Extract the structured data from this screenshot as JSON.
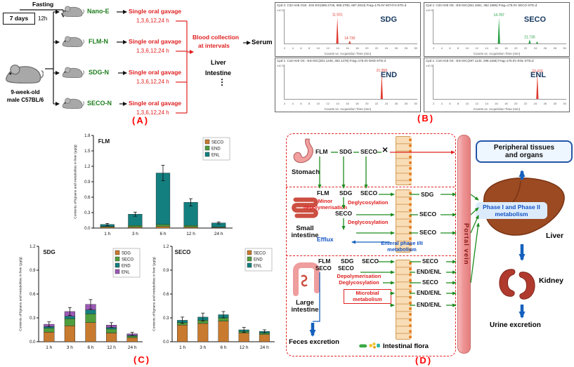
{
  "panels": {
    "a": "(A)",
    "b": "(B)",
    "c": "(C)",
    "d": "(D)"
  },
  "panel_a": {
    "fasting": "Fasting",
    "seven_days": "7 days",
    "twelve_h": "12h",
    "mouse_line1": "9-week-old",
    "mouse_line2": "male C57BL/6",
    "groups": [
      {
        "name": "Nano-E",
        "gavage": "Single oral gavage",
        "times": "1,3,6,12,24 h"
      },
      {
        "name": "FLM-N",
        "gavage": "Single oral gavage",
        "times": "1,3,6,12,24 h"
      },
      {
        "name": "SDG-N",
        "gavage": "Single oral gavage",
        "times": "1,3,6,12,24 h"
      },
      {
        "name": "SECO-N",
        "gavage": "Single oral gavage",
        "times": "1,3,6,12,24 h"
      }
    ],
    "blood_line1": "Blood collection",
    "blood_line2": "at intervals",
    "serum": "Serum",
    "liver": "Liver",
    "intestine": "Intestine",
    "dots": "⋮"
  },
  "panel_b": {
    "x_axis_caption": "Counts vs. Acquisition Time (min)",
    "y_unit": "x10 5",
    "panels": [
      {
        "name": "SDG",
        "header": "Cpd 2: C32 H46 O16: -ESI EIC(685.2746, 686.2780, 687.2813) Frag=175.0V 607474-STD.d",
        "color": "#e03a2f",
        "x_max": 30,
        "x_ticks": [
          2,
          4,
          6,
          8,
          10,
          12,
          14,
          16,
          18,
          20,
          22,
          24,
          26,
          28,
          30
        ],
        "peaks": [
          {
            "rt": 11.93,
            "h": 0.92,
            "label": "11.931"
          },
          {
            "rt": 14.73,
            "h": 0.1,
            "label": "14.730"
          }
        ]
      },
      {
        "name": "SECO",
        "header": "Cpd 1: C20 H26 O6: -ESI EIC(361.1651, 362.1685) Frag=175.0V SECO-STD.d",
        "color": "#1e9e3e",
        "x_max": 30,
        "x_ticks": [
          2,
          4,
          6,
          8,
          10,
          12,
          14,
          16,
          18,
          20,
          22,
          24,
          26,
          28,
          30
        ],
        "peaks": [
          {
            "rt": 14.79,
            "h": 0.9,
            "label": "14.787"
          },
          {
            "rt": 21.73,
            "h": 0.14,
            "label": "21.730"
          },
          {
            "rt": 23.4,
            "h": 0.07,
            "label": ""
          }
        ]
      },
      {
        "name": "END",
        "header": "Cpd 1: C18 H20 O4: -ESI EIC(301.1445, 302.1478) Frag=175.0V END-STD.d",
        "color": "#e03a2f",
        "x_max": 30,
        "x_ticks": [
          2,
          4,
          6,
          8,
          10,
          12,
          14,
          16,
          18,
          20,
          22,
          24,
          26,
          28,
          30
        ],
        "peaks": [
          {
            "rt": 21.96,
            "h": 0.9,
            "label": "21.958"
          }
        ]
      },
      {
        "name": "ENL",
        "header": "Cpd 1: C18 H18 O4: -ESI EIC(297.1132, 298.1166) Frag=175.0V ENL-STD.d",
        "color": "#e03a2f",
        "x_max": 30,
        "x_ticks": [
          2,
          4,
          6,
          8,
          10,
          12,
          14,
          16,
          18,
          20,
          22,
          24,
          26,
          28,
          30
        ],
        "peaks": [
          {
            "rt": 23.47,
            "h": 0.88,
            "label": "23.470"
          }
        ]
      }
    ]
  },
  "chart_data": [
    {
      "type": "bar",
      "title": "FLM",
      "ylabel": "Contents of lignans and metabolites in liver (μg/g)",
      "ylim": [
        0,
        1.8
      ],
      "yticks": [
        0,
        0.3,
        0.6,
        0.9,
        1.2,
        1.5,
        1.8
      ],
      "categories": [
        "1 h",
        "3 h",
        "6 h",
        "12 h",
        "24 h"
      ],
      "series": [
        {
          "name": "SECO",
          "color": "#c87a2e",
          "values": [
            0.02,
            0.02,
            0.03,
            0.02,
            0.01
          ]
        },
        {
          "name": "END",
          "color": "#4f9d3c",
          "values": [
            0.01,
            0.03,
            0.04,
            0.03,
            0.01
          ]
        },
        {
          "name": "ENL",
          "color": "#137f7f",
          "values": [
            0.04,
            0.22,
            1.0,
            0.45,
            0.08
          ]
        }
      ],
      "errors": [
        0.02,
        0.04,
        0.15,
        0.07,
        0.02
      ],
      "legend_pos": "top-right",
      "grid": false
    },
    {
      "type": "bar",
      "title": "SDG",
      "ylabel": "Contents of lignans and metabolites in liver (μg/g)",
      "ylim": [
        0,
        1.2
      ],
      "yticks": [
        0,
        0.3,
        0.6,
        0.9,
        1.2
      ],
      "categories": [
        "1 h",
        "3 h",
        "6 h",
        "12 h",
        "24 h"
      ],
      "series": [
        {
          "name": "SDG",
          "color": "#c87a2e",
          "values": [
            0.12,
            0.2,
            0.24,
            0.11,
            0.05
          ]
        },
        {
          "name": "SECO",
          "color": "#4f9d3c",
          "values": [
            0.05,
            0.09,
            0.11,
            0.05,
            0.02
          ]
        },
        {
          "name": "END",
          "color": "#137f7f",
          "values": [
            0.02,
            0.03,
            0.05,
            0.02,
            0.01
          ]
        },
        {
          "name": "ENL",
          "color": "#9b59b6",
          "values": [
            0.03,
            0.06,
            0.07,
            0.03,
            0.02
          ]
        }
      ],
      "errors": [
        0.03,
        0.05,
        0.06,
        0.03,
        0.02
      ],
      "legend_pos": "top-right",
      "grid": false
    },
    {
      "type": "bar",
      "title": "SECO",
      "ylabel": "Contents of lignans and metabolites in liver (μg/g)",
      "ylim": [
        0,
        1.2
      ],
      "yticks": [
        0,
        0.3,
        0.6,
        0.9,
        1.2
      ],
      "categories": [
        "1 h",
        "3 h",
        "6 h",
        "12 h",
        "24 h"
      ],
      "series": [
        {
          "name": "SECO",
          "color": "#c87a2e",
          "values": [
            0.21,
            0.23,
            0.26,
            0.11,
            0.09
          ]
        },
        {
          "name": "END",
          "color": "#4f9d3c",
          "values": [
            0.03,
            0.04,
            0.04,
            0.02,
            0.02
          ]
        },
        {
          "name": "ENL",
          "color": "#137f7f",
          "values": [
            0.03,
            0.04,
            0.04,
            0.02,
            0.02
          ]
        }
      ],
      "errors": [
        0.04,
        0.05,
        0.04,
        0.03,
        0.02
      ],
      "legend_pos": "top-right",
      "grid": false
    }
  ],
  "panel_d": {
    "stomach": "Stomach",
    "si_label_1": "Small",
    "si_label_2": "intestine",
    "li_label_1": "Large",
    "li_label_2": "intestine",
    "portal_vein": "Portal vein",
    "peripheral_1": "Peripheral tissues",
    "peripheral_2": "and organs",
    "phase": "Phase I and Phase II metabolism",
    "liver": "Liver",
    "kidney": "Kidney",
    "urine": "Urine excretion",
    "feces": "Feces excretion",
    "flora": "Intestinal flora",
    "x_mark": "×",
    "stomach_row": {
      "flm": "FLM",
      "sdg": "SDG",
      "seco": "SECO"
    },
    "si_row": {
      "flm": "FLM",
      "sdg": "SDG",
      "seco": "SECO"
    },
    "si_minor_1": "Minor",
    "si_minor_2": "depolymerisation",
    "si_deglyco1": "Deglycosylation",
    "si_seco_mid": "SECO",
    "si_deglyco2": "Deglycosylation",
    "si_right": [
      "SDG",
      "SECO",
      "SECO"
    ],
    "efflux": "Efflux",
    "enteral_1": "Enteral phase I/II",
    "enteral_2": "metabolism",
    "li_row1": {
      "flm": "FLM",
      "sdg": "SDG",
      "seco": "SECO"
    },
    "li_row2": {
      "a": "SECO",
      "b": "SECO"
    },
    "li_depoly": "Depolymerisation",
    "li_deglyco": "Deglycosylation",
    "microbial_1": "Microbial",
    "microbial_2": "metabolism",
    "li_right": [
      "SECO",
      "END/ENL",
      "SECO",
      "END/ENL",
      "END/ENL"
    ]
  },
  "colors": {
    "accent_red": "#e02020",
    "accent_green": "#1e8c1e",
    "accent_blue": "#1560bd",
    "portal_pink": "#ee9494",
    "liver_brown": "#9b4a22"
  }
}
